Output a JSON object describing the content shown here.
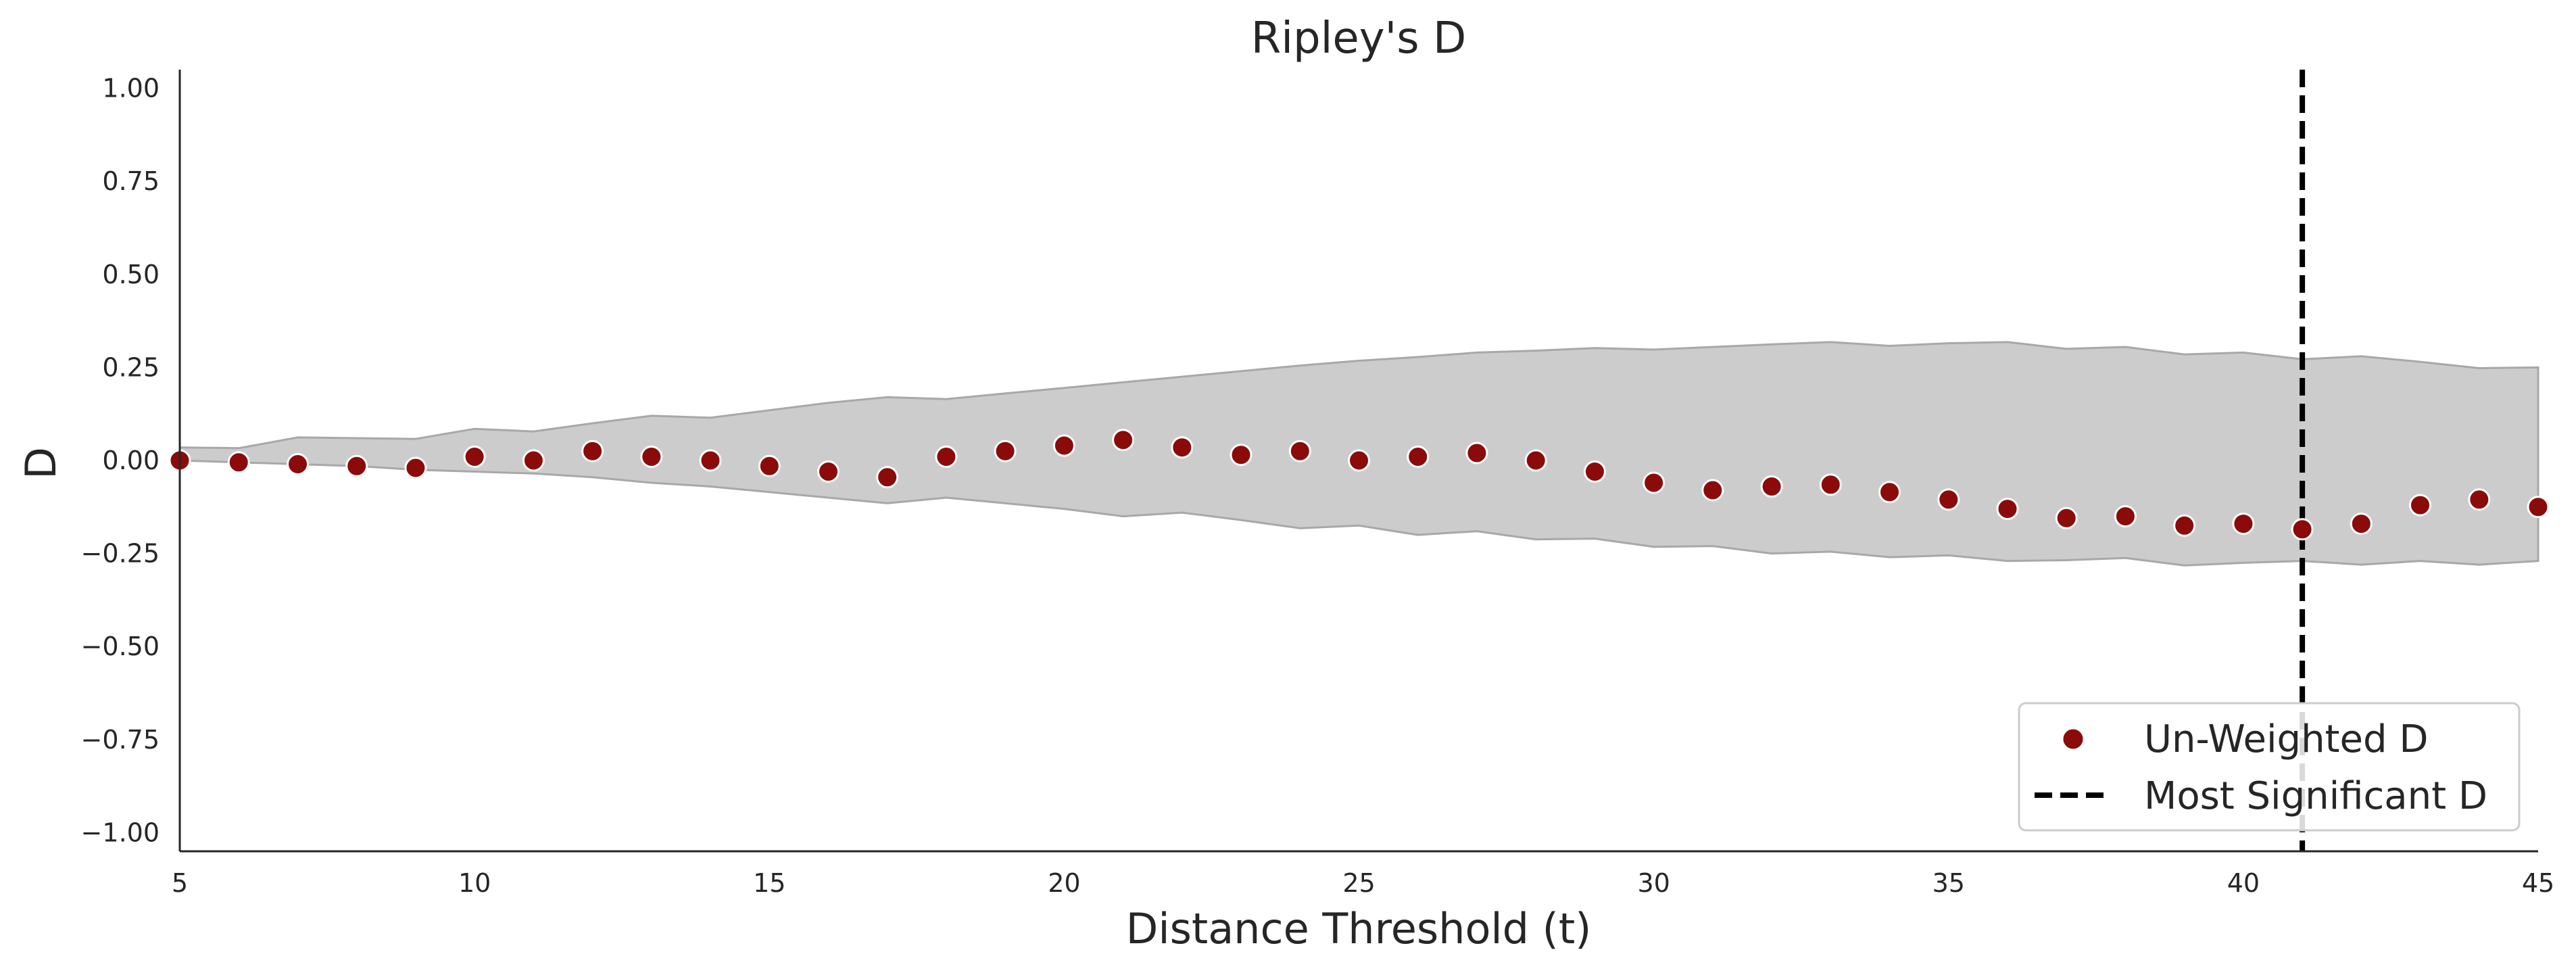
{
  "chart_data": {
    "type": "scatter",
    "title": "Ripley's D",
    "xlabel": "Distance Threshold (t)",
    "ylabel": "D",
    "xlim": [
      5,
      45
    ],
    "ylim": [
      -1.05,
      1.05
    ],
    "xticks": [
      5,
      10,
      15,
      20,
      25,
      30,
      35,
      40,
      45
    ],
    "yticks": [
      1.0,
      0.75,
      0.5,
      0.25,
      0.0,
      -0.25,
      -0.5,
      -0.75,
      -1.0
    ],
    "ytick_labels": [
      "1.00",
      "0.75",
      "0.50",
      "0.25",
      "0.00",
      "−0.25",
      "−0.50",
      "−0.75",
      "−1.00"
    ],
    "grid": false,
    "legend_position": "lower-right",
    "series": [
      {
        "name": "Un-Weighted D",
        "kind": "scatter",
        "color": "#8b0a0a",
        "x": [
          5,
          6,
          7,
          8,
          9,
          10,
          11,
          12,
          13,
          14,
          15,
          16,
          17,
          18,
          19,
          20,
          21,
          22,
          23,
          24,
          25,
          26,
          27,
          28,
          29,
          30,
          31,
          32,
          33,
          34,
          35,
          36,
          37,
          38,
          39,
          40,
          41,
          42,
          43,
          44,
          45
        ],
        "y": [
          0.0,
          -0.005,
          -0.01,
          -0.015,
          -0.02,
          0.01,
          0.0,
          0.025,
          0.01,
          0.0,
          -0.015,
          -0.03,
          -0.045,
          0.01,
          0.025,
          0.04,
          0.055,
          0.035,
          0.015,
          0.025,
          0.0,
          0.01,
          0.02,
          0.0,
          -0.03,
          -0.06,
          -0.08,
          -0.07,
          -0.065,
          -0.085,
          -0.105,
          -0.13,
          -0.155,
          -0.15,
          -0.175,
          -0.17,
          -0.185,
          -0.17,
          -0.12,
          -0.105,
          -0.125
        ]
      }
    ],
    "envelope": {
      "color": "#cccccc",
      "edge_color": "#a8a8a8",
      "x": [
        5,
        6,
        7,
        8,
        9,
        10,
        11,
        12,
        13,
        14,
        15,
        16,
        17,
        18,
        19,
        20,
        21,
        22,
        23,
        24,
        25,
        26,
        27,
        28,
        29,
        30,
        31,
        32,
        33,
        34,
        35,
        36,
        37,
        38,
        39,
        40,
        41,
        42,
        43,
        44,
        45
      ],
      "upper": [
        0.035,
        0.033,
        0.062,
        0.06,
        0.058,
        0.085,
        0.078,
        0.1,
        0.12,
        0.115,
        0.135,
        0.155,
        0.17,
        0.165,
        0.18,
        0.195,
        0.21,
        0.225,
        0.24,
        0.255,
        0.268,
        0.278,
        0.29,
        0.295,
        0.302,
        0.298,
        0.305,
        0.312,
        0.318,
        0.308,
        0.315,
        0.318,
        0.3,
        0.305,
        0.285,
        0.29,
        0.272,
        0.28,
        0.265,
        0.248,
        0.25
      ],
      "lower": [
        0.0,
        -0.005,
        -0.01,
        -0.015,
        -0.025,
        -0.03,
        -0.035,
        -0.045,
        -0.06,
        -0.07,
        -0.085,
        -0.1,
        -0.115,
        -0.1,
        -0.115,
        -0.13,
        -0.15,
        -0.14,
        -0.16,
        -0.182,
        -0.175,
        -0.2,
        -0.19,
        -0.212,
        -0.21,
        -0.232,
        -0.23,
        -0.25,
        -0.245,
        -0.26,
        -0.255,
        -0.27,
        -0.268,
        -0.262,
        -0.282,
        -0.275,
        -0.27,
        -0.28,
        -0.27,
        -0.28,
        -0.27
      ]
    },
    "vline": {
      "name": "Most Significant D",
      "x": 41,
      "color": "#000000",
      "style": "dashed"
    }
  }
}
